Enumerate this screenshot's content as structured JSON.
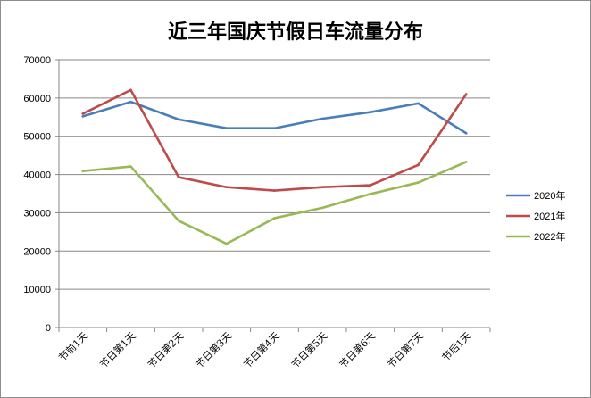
{
  "chart_data": {
    "type": "line",
    "title": "近三年国庆节假日车流量分布",
    "xlabel": "",
    "ylabel": "",
    "categories": [
      "节前1天",
      "节日第1天",
      "节日第2天",
      "节日第3天",
      "节日第4天",
      "节日第5天",
      "节日第6天",
      "节日第7天",
      "节后1天"
    ],
    "ylim": [
      0,
      70000
    ],
    "yticks": [
      0,
      10000,
      20000,
      30000,
      40000,
      50000,
      60000,
      70000
    ],
    "ytick_labels": [
      "0",
      "10000",
      "20000",
      "30000",
      "40000",
      "50000",
      "60000",
      "70000"
    ],
    "grid": true,
    "legend_position": "right",
    "series": [
      {
        "name": "2020年",
        "color": "#4a7ebb",
        "values": [
          55200,
          59000,
          54400,
          52100,
          52100,
          54600,
          56300,
          58600,
          50800
        ]
      },
      {
        "name": "2021年",
        "color": "#be4b48",
        "values": [
          55900,
          62100,
          39300,
          36700,
          35800,
          36700,
          37200,
          42500,
          61000
        ]
      },
      {
        "name": "2022年",
        "color": "#98b954",
        "values": [
          40900,
          42100,
          27900,
          21900,
          28600,
          31300,
          34900,
          37900,
          43300
        ]
      }
    ]
  }
}
